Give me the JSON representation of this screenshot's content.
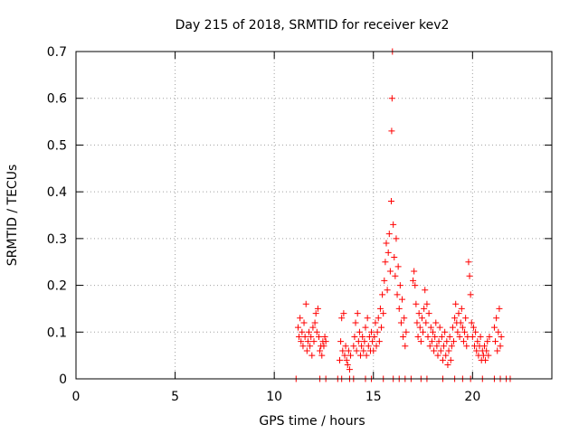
{
  "chart_data": {
    "type": "scatter",
    "title": "Day 215 of 2018, SRMTID for receiver kev2",
    "xlabel": "GPS time / hours",
    "ylabel": "SRMTID / TECUs",
    "xlim": [
      0,
      24
    ],
    "ylim": [
      0,
      0.7
    ],
    "xticks": [
      0,
      5,
      10,
      15,
      20
    ],
    "yticks": [
      0,
      0.1,
      0.2,
      0.3,
      0.4,
      0.5,
      0.6,
      0.7
    ],
    "grid": true,
    "marker": "plus",
    "color": "#ff0000",
    "series": [
      {
        "name": "kev2",
        "points": [
          [
            11.2,
            0.11
          ],
          [
            11.25,
            0.09
          ],
          [
            11.3,
            0.13
          ],
          [
            11.35,
            0.08
          ],
          [
            11.4,
            0.1
          ],
          [
            11.45,
            0.07
          ],
          [
            11.5,
            0.12
          ],
          [
            11.55,
            0.09
          ],
          [
            11.6,
            0.16
          ],
          [
            11.65,
            0.06
          ],
          [
            11.7,
            0.08
          ],
          [
            11.75,
            0.1
          ],
          [
            11.8,
            0.07
          ],
          [
            11.85,
            0.09
          ],
          [
            11.9,
            0.05
          ],
          [
            11.95,
            0.11
          ],
          [
            12.0,
            0.08
          ],
          [
            12.05,
            0.12
          ],
          [
            12.1,
            0.14
          ],
          [
            12.15,
            0.1
          ],
          [
            12.2,
            0.15
          ],
          [
            12.25,
            0.09
          ],
          [
            12.3,
            0.06
          ],
          [
            12.35,
            0.07
          ],
          [
            12.4,
            0.05
          ],
          [
            12.45,
            0.08
          ],
          [
            12.5,
            0.07
          ],
          [
            12.55,
            0.09
          ],
          [
            12.6,
            0.08
          ],
          [
            13.3,
            0.04
          ],
          [
            13.35,
            0.08
          ],
          [
            13.4,
            0.13
          ],
          [
            13.45,
            0.06
          ],
          [
            13.5,
            0.14
          ],
          [
            13.55,
            0.05
          ],
          [
            13.6,
            0.07
          ],
          [
            13.65,
            0.04
          ],
          [
            13.7,
            0.03
          ],
          [
            13.75,
            0.06
          ],
          [
            13.8,
            0.02
          ],
          [
            13.85,
            0.05
          ],
          [
            14.0,
            0.07
          ],
          [
            14.05,
            0.09
          ],
          [
            14.1,
            0.12
          ],
          [
            14.15,
            0.06
          ],
          [
            14.2,
            0.14
          ],
          [
            14.25,
            0.08
          ],
          [
            14.3,
            0.1
          ],
          [
            14.35,
            0.05
          ],
          [
            14.4,
            0.07
          ],
          [
            14.45,
            0.09
          ],
          [
            14.5,
            0.06
          ],
          [
            14.55,
            0.08
          ],
          [
            14.6,
            0.11
          ],
          [
            14.65,
            0.05
          ],
          [
            14.7,
            0.13
          ],
          [
            14.75,
            0.07
          ],
          [
            14.8,
            0.09
          ],
          [
            14.85,
            0.06
          ],
          [
            14.9,
            0.1
          ],
          [
            14.95,
            0.08
          ],
          [
            15.0,
            0.06
          ],
          [
            15.05,
            0.09
          ],
          [
            15.1,
            0.12
          ],
          [
            15.15,
            0.07
          ],
          [
            15.2,
            0.1
          ],
          [
            15.25,
            0.13
          ],
          [
            15.3,
            0.08
          ],
          [
            15.35,
            0.15
          ],
          [
            15.4,
            0.11
          ],
          [
            15.45,
            0.18
          ],
          [
            15.5,
            0.14
          ],
          [
            15.55,
            0.21
          ],
          [
            15.6,
            0.25
          ],
          [
            15.65,
            0.29
          ],
          [
            15.7,
            0.19
          ],
          [
            15.75,
            0.27
          ],
          [
            15.8,
            0.31
          ],
          [
            15.85,
            0.23
          ],
          [
            15.9,
            0.38
          ],
          [
            15.92,
            0.53
          ],
          [
            15.94,
            0.6
          ],
          [
            15.96,
            0.7
          ],
          [
            16.0,
            0.33
          ],
          [
            16.05,
            0.26
          ],
          [
            16.1,
            0.22
          ],
          [
            16.15,
            0.3
          ],
          [
            16.2,
            0.18
          ],
          [
            16.25,
            0.24
          ],
          [
            16.3,
            0.15
          ],
          [
            16.35,
            0.2
          ],
          [
            16.4,
            0.12
          ],
          [
            16.45,
            0.17
          ],
          [
            16.5,
            0.09
          ],
          [
            16.55,
            0.13
          ],
          [
            16.6,
            0.07
          ],
          [
            16.65,
            0.1
          ],
          [
            17.0,
            0.21
          ],
          [
            17.05,
            0.23
          ],
          [
            17.1,
            0.2
          ],
          [
            17.15,
            0.16
          ],
          [
            17.2,
            0.12
          ],
          [
            17.25,
            0.09
          ],
          [
            17.3,
            0.14
          ],
          [
            17.35,
            0.11
          ],
          [
            17.4,
            0.08
          ],
          [
            17.45,
            0.13
          ],
          [
            17.5,
            0.1
          ],
          [
            17.55,
            0.15
          ],
          [
            17.6,
            0.19
          ],
          [
            17.65,
            0.12
          ],
          [
            17.7,
            0.16
          ],
          [
            17.75,
            0.09
          ],
          [
            17.8,
            0.14
          ],
          [
            17.85,
            0.07
          ],
          [
            17.9,
            0.11
          ],
          [
            17.95,
            0.08
          ],
          [
            18.0,
            0.1
          ],
          [
            18.05,
            0.06
          ],
          [
            18.1,
            0.09
          ],
          [
            18.15,
            0.12
          ],
          [
            18.2,
            0.07
          ],
          [
            18.25,
            0.05
          ],
          [
            18.3,
            0.08
          ],
          [
            18.35,
            0.11
          ],
          [
            18.4,
            0.06
          ],
          [
            18.45,
            0.09
          ],
          [
            18.5,
            0.04
          ],
          [
            18.55,
            0.07
          ],
          [
            18.6,
            0.1
          ],
          [
            18.65,
            0.05
          ],
          [
            18.7,
            0.08
          ],
          [
            18.75,
            0.03
          ],
          [
            18.8,
            0.06
          ],
          [
            18.85,
            0.09
          ],
          [
            18.9,
            0.04
          ],
          [
            18.95,
            0.07
          ],
          [
            19.0,
            0.11
          ],
          [
            19.05,
            0.08
          ],
          [
            19.1,
            0.13
          ],
          [
            19.15,
            0.16
          ],
          [
            19.2,
            0.12
          ],
          [
            19.25,
            0.1
          ],
          [
            19.3,
            0.14
          ],
          [
            19.35,
            0.09
          ],
          [
            19.4,
            0.12
          ],
          [
            19.45,
            0.15
          ],
          [
            19.5,
            0.11
          ],
          [
            19.55,
            0.08
          ],
          [
            19.6,
            0.1
          ],
          [
            19.65,
            0.13
          ],
          [
            19.7,
            0.07
          ],
          [
            19.75,
            0.09
          ],
          [
            19.8,
            0.25
          ],
          [
            19.85,
            0.22
          ],
          [
            19.9,
            0.18
          ],
          [
            19.95,
            0.12
          ],
          [
            20.0,
            0.09
          ],
          [
            20.05,
            0.11
          ],
          [
            20.1,
            0.07
          ],
          [
            20.15,
            0.1
          ],
          [
            20.2,
            0.06
          ],
          [
            20.25,
            0.08
          ],
          [
            20.3,
            0.05
          ],
          [
            20.35,
            0.07
          ],
          [
            20.4,
            0.09
          ],
          [
            20.45,
            0.04
          ],
          [
            20.5,
            0.06
          ],
          [
            20.55,
            0.05
          ],
          [
            20.6,
            0.07
          ],
          [
            20.65,
            0.04
          ],
          [
            20.7,
            0.06
          ],
          [
            20.75,
            0.08
          ],
          [
            20.8,
            0.05
          ],
          [
            20.85,
            0.09
          ],
          [
            21.1,
            0.11
          ],
          [
            21.15,
            0.08
          ],
          [
            21.2,
            0.13
          ],
          [
            21.25,
            0.06
          ],
          [
            21.3,
            0.1
          ],
          [
            21.35,
            0.15
          ],
          [
            21.4,
            0.07
          ],
          [
            21.45,
            0.09
          ],
          [
            11.1,
            0
          ],
          [
            12.3,
            0
          ],
          [
            12.6,
            0
          ],
          [
            13.2,
            0
          ],
          [
            13.4,
            0
          ],
          [
            13.8,
            0
          ],
          [
            14.0,
            0
          ],
          [
            14.6,
            0
          ],
          [
            14.9,
            0
          ],
          [
            15.5,
            0
          ],
          [
            16.0,
            0
          ],
          [
            16.3,
            0
          ],
          [
            16.6,
            0
          ],
          [
            16.9,
            0
          ],
          [
            17.4,
            0
          ],
          [
            17.7,
            0
          ],
          [
            18.5,
            0
          ],
          [
            19.1,
            0
          ],
          [
            19.5,
            0
          ],
          [
            19.9,
            0
          ],
          [
            20.5,
            0
          ],
          [
            21.1,
            0
          ],
          [
            21.4,
            0
          ],
          [
            21.7,
            0
          ],
          [
            21.9,
            0
          ]
        ]
      }
    ]
  }
}
